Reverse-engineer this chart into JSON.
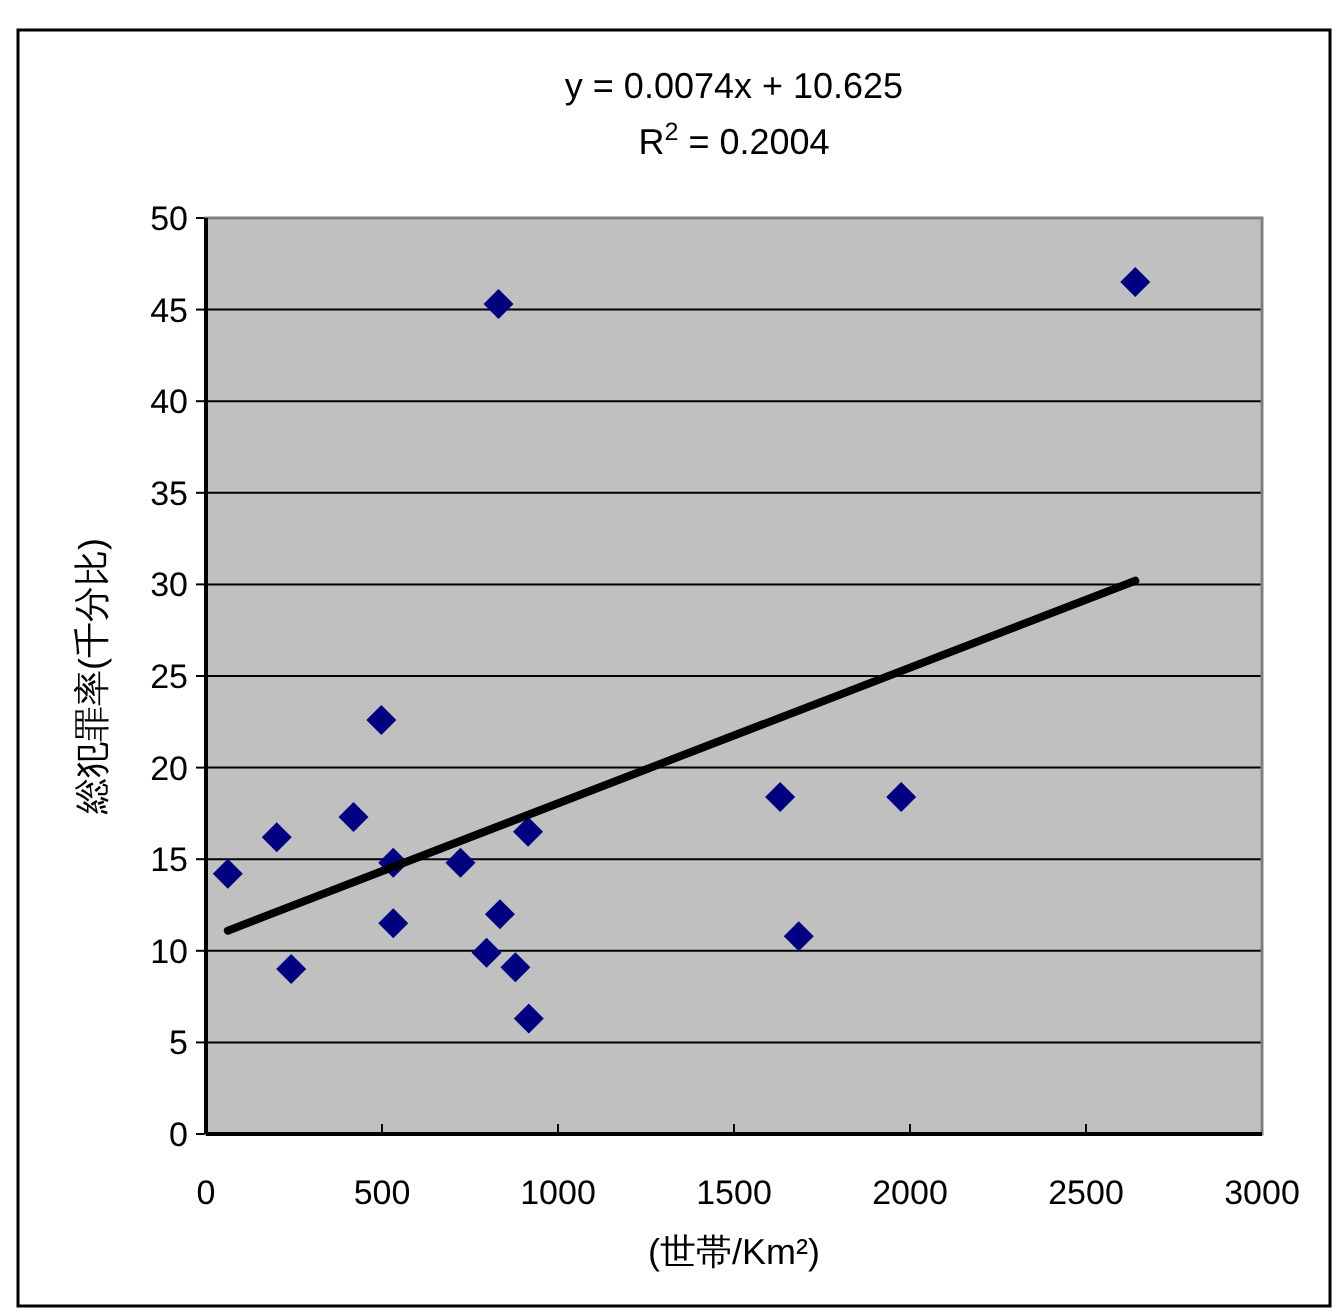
{
  "chart_data": {
    "type": "scatter",
    "xlabel": "(世帯/Km²)",
    "ylabel": "総犯罪率(千分比)",
    "annotations": [
      "y = 0.0074x + 10.625",
      "R$^{2}$ = 0.2004"
    ],
    "xlim": [
      0,
      3000
    ],
    "xticks": [
      0,
      500,
      1000,
      1500,
      2000,
      2500,
      3000
    ],
    "ylim": [
      0,
      50
    ],
    "yticks": [
      0,
      5,
      10,
      15,
      20,
      25,
      30,
      35,
      40,
      45,
      50
    ],
    "grid": "y",
    "series": [
      {
        "marker": "diamond",
        "color": "#000080",
        "x": [
          62,
          201,
          242,
          419,
          498,
          532,
          532,
          831,
          723,
          915,
          835,
          797,
          879,
          917,
          1631,
          2640,
          1975,
          1684
        ],
        "values": [
          14.2,
          16.2,
          9.0,
          17.3,
          22.6,
          14.8,
          11.5,
          45.3,
          14.8,
          16.5,
          12.0,
          9.9,
          9.1,
          6.3,
          18.4,
          46.5,
          18.4,
          10.8
        ]
      },
      {
        "type": "line",
        "color": "#000000",
        "x": [
          62,
          2640
        ],
        "values": [
          11.1,
          30.2
        ]
      }
    ]
  }
}
